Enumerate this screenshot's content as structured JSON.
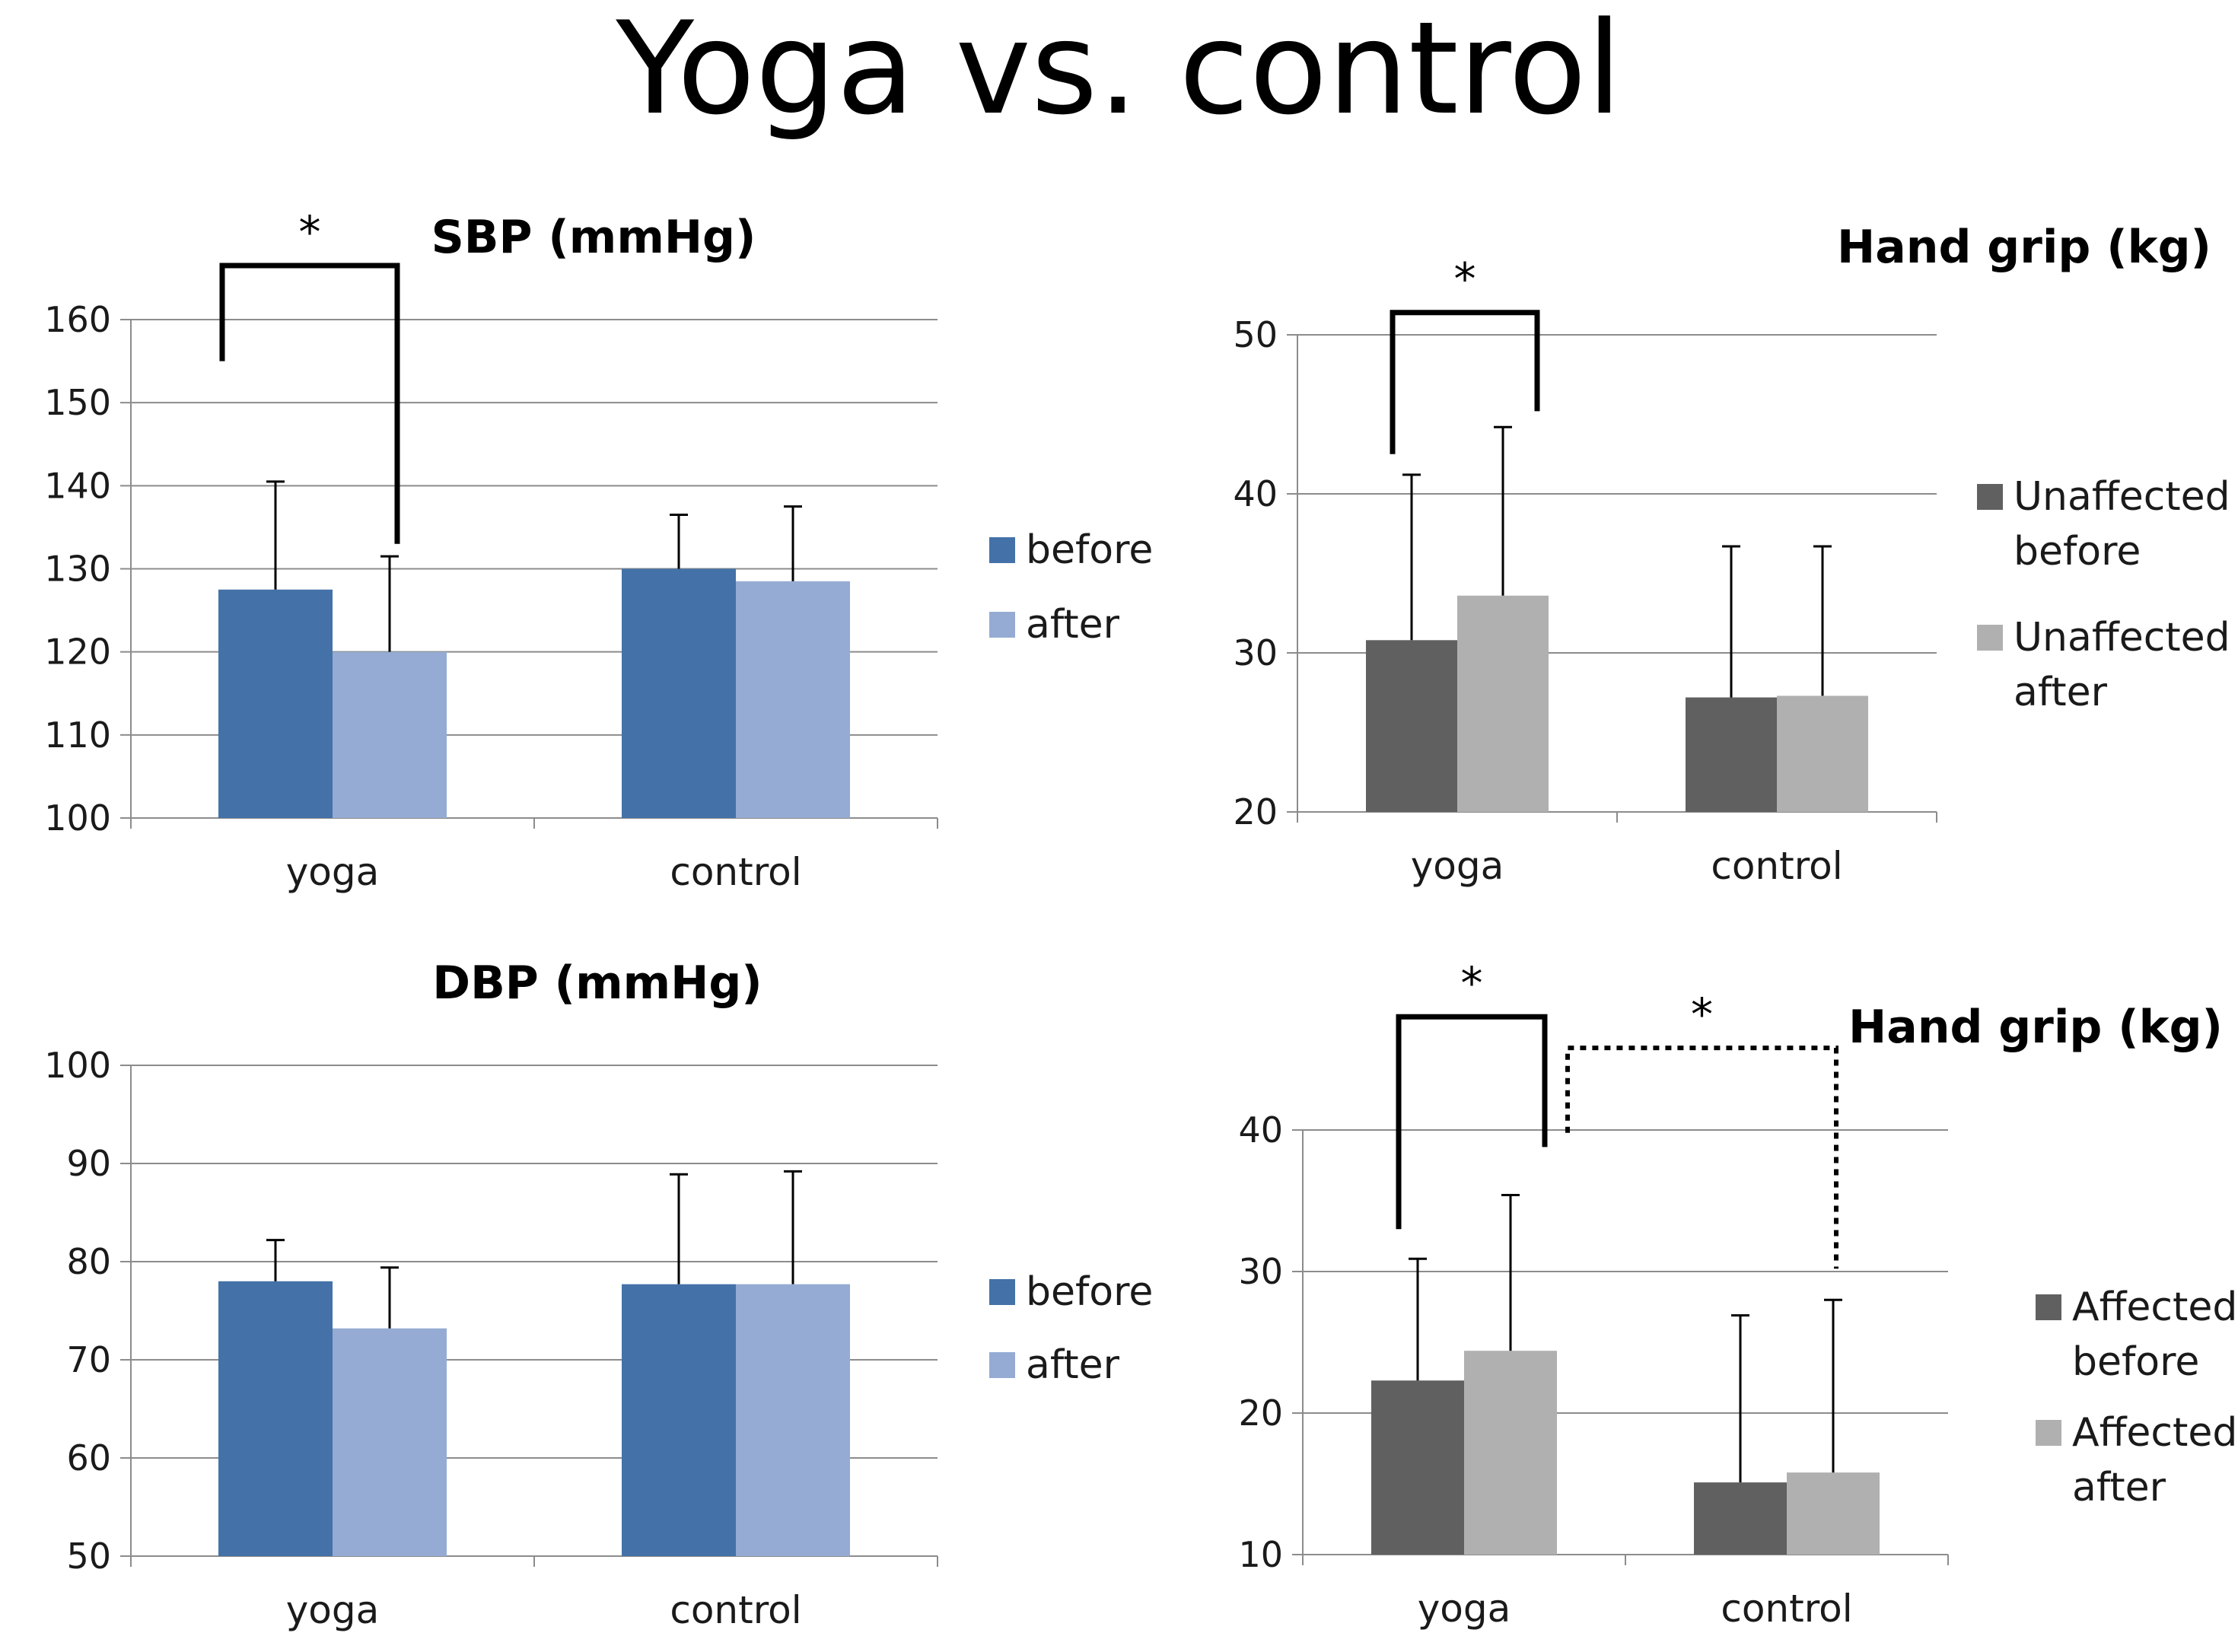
{
  "title": "Yoga vs. control",
  "chart_data": [
    {
      "id": "sbp",
      "type": "bar",
      "title": "SBP (mmHg)",
      "categories": [
        "yoga",
        "control"
      ],
      "ylim": [
        100,
        160
      ],
      "yticks": [
        100,
        110,
        120,
        130,
        140,
        150,
        160
      ],
      "grid": true,
      "legend_position": "right",
      "series": [
        {
          "name": "before",
          "color": "#4472a8",
          "values": [
            127.5,
            130
          ],
          "errors": [
            13,
            6.5
          ]
        },
        {
          "name": "after",
          "color": "#95abd3",
          "values": [
            120,
            128.5
          ],
          "errors": [
            11.5,
            9
          ]
        }
      ],
      "annotations": [
        {
          "label": "*",
          "style": "solid",
          "between": "yoga before / yoga after"
        }
      ]
    },
    {
      "id": "dbp",
      "type": "bar",
      "title": "DBP (mmHg)",
      "categories": [
        "yoga",
        "control"
      ],
      "ylim": [
        50,
        100
      ],
      "yticks": [
        50,
        60,
        70,
        80,
        90,
        100
      ],
      "grid": true,
      "legend_position": "right",
      "series": [
        {
          "name": "before",
          "color": "#4472a8",
          "values": [
            78,
            77.7
          ],
          "errors": [
            4.2,
            11.2
          ]
        },
        {
          "name": "after",
          "color": "#95abd3",
          "values": [
            73.2,
            77.7
          ],
          "errors": [
            6.2,
            11.5
          ]
        }
      ],
      "annotations": []
    },
    {
      "id": "grip_unaffected",
      "type": "bar",
      "title": "Hand grip (kg)",
      "categories": [
        "yoga",
        "control"
      ],
      "ylim": [
        20,
        50
      ],
      "yticks": [
        20,
        30,
        40,
        50
      ],
      "grid": true,
      "legend_position": "right",
      "series": [
        {
          "name": "Unaffected before",
          "color": "#606060",
          "values": [
            30.8,
            27.2
          ],
          "errors": [
            10.4,
            9.5
          ]
        },
        {
          "name": "Unaffected after",
          "color": "#b0b0b0",
          "values": [
            33.6,
            27.3
          ],
          "errors": [
            10.6,
            9.4
          ]
        }
      ],
      "annotations": [
        {
          "label": "*",
          "style": "solid",
          "between": "yoga before / yoga after"
        }
      ]
    },
    {
      "id": "grip_affected",
      "type": "bar",
      "title": "Hand grip (kg)",
      "categories": [
        "yoga",
        "control"
      ],
      "ylim": [
        10,
        40
      ],
      "yticks": [
        10,
        20,
        30,
        40
      ],
      "grid": true,
      "legend_position": "right",
      "series": [
        {
          "name": "Affected before",
          "color": "#606060",
          "values": [
            22.3,
            15.1
          ],
          "errors": [
            8.6,
            11.8
          ]
        },
        {
          "name": "Affected after",
          "color": "#b0b0b0",
          "values": [
            24.4,
            15.8
          ],
          "errors": [
            11.0,
            12.2
          ]
        }
      ],
      "annotations": [
        {
          "label": "*",
          "style": "solid",
          "between": "yoga before / yoga after"
        },
        {
          "label": "*",
          "style": "dotted",
          "between": "yoga after / control after"
        }
      ]
    }
  ]
}
